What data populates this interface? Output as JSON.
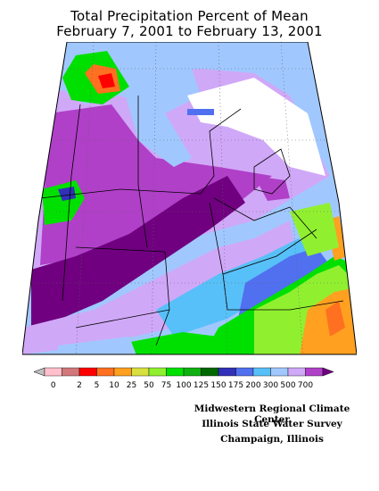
{
  "title_line1": "Total Precipitation Percent of Mean",
  "title_line2": "February 7, 2001 to February 13, 2001",
  "legend": {
    "colors": [
      "#c0c0c0",
      "#ffc0cb",
      "#d2787a",
      "#ff0000",
      "#ff7020",
      "#ffa020",
      "#d8e040",
      "#90f030",
      "#00e000",
      "#10b010",
      "#006800",
      "#3030b8",
      "#5070f0",
      "#58c0f8",
      "#a0c8ff",
      "#d0a8f8",
      "#b040c8",
      "#700080"
    ],
    "labels": [
      "0",
      "2",
      "5",
      "10",
      "25",
      "50",
      "75",
      "100",
      "125",
      "150",
      "175",
      "200",
      "300",
      "500",
      "700"
    ]
  },
  "credits": [
    "Midwestern Regional Climate Center",
    "Illinois State Water Survey",
    "Champaign, Illinois"
  ]
}
